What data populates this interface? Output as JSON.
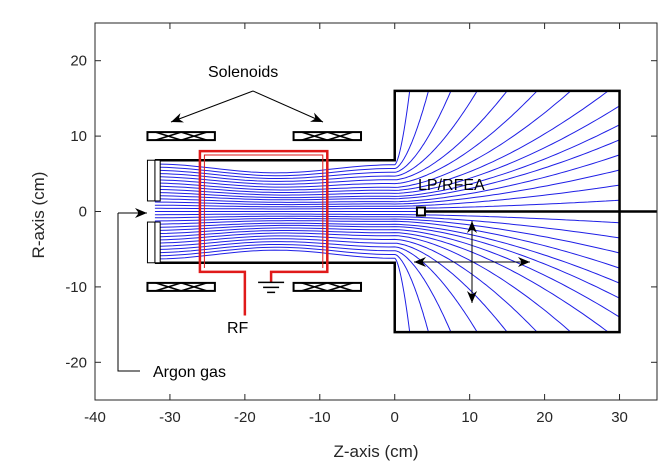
{
  "figure": {
    "xlabel": "Z-axis (cm)",
    "ylabel": "R-axis (cm)",
    "x_ticks": [
      "-40",
      "-30",
      "-20",
      "-10",
      "0",
      "10",
      "20",
      "30"
    ],
    "y_ticks": [
      "20",
      "10",
      "0",
      "-10",
      "-20"
    ],
    "xlim": [
      -40,
      35
    ],
    "ylim": [
      -25,
      25
    ],
    "colors": {
      "field_lines": "#1f1fe6",
      "rf_antenna": "#e01a1a",
      "structure": "#000000",
      "axes": "#262626"
    }
  },
  "annotations": {
    "solenoids": "Solenoids",
    "probe": "LP/RFEA",
    "rf": "RF",
    "gas": "Argon gas"
  },
  "source_chamber": {
    "z_start": -32,
    "z_end": 0,
    "r": 6.8
  },
  "expansion_chamber": {
    "z_start": 0,
    "z_end": 30,
    "r": 16
  },
  "rf_antenna": {
    "z_start": -26,
    "z_end": -9,
    "r": 8,
    "r_in": 7.5,
    "leg_z": [
      -20,
      -16.5
    ],
    "leg_bottom": -13.8
  },
  "solenoids": [
    {
      "z_start": -33,
      "z_end": -24,
      "r": 10
    },
    {
      "z_start": -13.5,
      "z_end": -4.5,
      "r": 10
    },
    {
      "z_start": -33,
      "z_end": -24,
      "r": -10
    },
    {
      "z_start": -13.5,
      "z_end": -4.5,
      "r": -10
    }
  ],
  "probe": {
    "z": 3.5,
    "r": 0,
    "shaft_end": 35
  },
  "field_lines_exit_r": [
    0.4,
    0.7,
    1.0,
    1.3,
    1.7,
    2.0,
    2.4,
    2.8,
    3.2,
    3.7,
    4.2,
    4.7,
    5.2,
    5.7,
    6.2
  ],
  "field_lines_end_r": [
    1.5,
    3.5,
    5.5,
    7.5,
    9.5,
    11.5,
    14,
    16,
    16,
    16,
    16,
    16,
    16,
    16,
    16
  ],
  "field_lines_end_z": [
    30,
    30,
    30,
    30,
    30,
    30,
    30,
    28.5,
    23.5,
    19,
    15,
    11,
    7.5,
    4.5,
    2
  ]
}
